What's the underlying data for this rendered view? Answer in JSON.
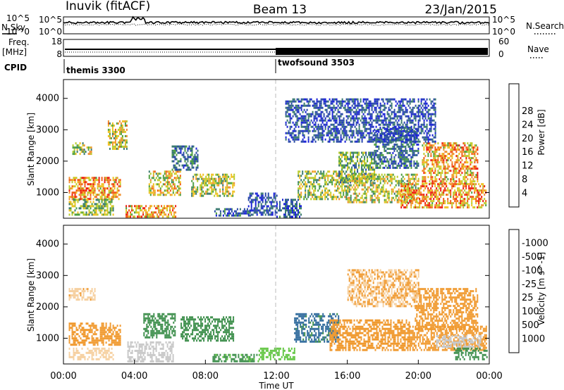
{
  "header": {
    "station": "Inuvik (fitACF)",
    "beam": "Beam 13",
    "date": "23/Jan/2015"
  },
  "strips": {
    "nsky_label": "N.Sky",
    "nsky_ticks": [
      "10^5",
      "10^0"
    ],
    "nsearch_label": "N.Search",
    "nsearch_ticks": [
      "10^5",
      "10^0"
    ],
    "freq_label": "Freq.",
    "freq_unit": "[MHz]",
    "freq_ticks": [
      "18",
      "8"
    ],
    "nave_label": "Nave",
    "nave_ticks": [
      "60",
      "0"
    ],
    "cpid_label": "CPID",
    "cpid_segments": [
      {
        "name": "themis 3300",
        "start_hour": 0,
        "end_hour": 12
      },
      {
        "name": "twofsound 3503",
        "start_hour": 12,
        "end_hour": 24
      }
    ]
  },
  "xaxis": {
    "label": "Time UT",
    "ticks": [
      "00:00",
      "04:00",
      "08:00",
      "12:00",
      "16:00",
      "20:00",
      "00:00"
    ]
  },
  "chart_data": [
    {
      "type": "heatmap",
      "title": "",
      "xlabel": "Time UT",
      "ylabel": "Slant Range [km]",
      "xlim": [
        0,
        24
      ],
      "ylim": [
        180,
        4600
      ],
      "yticks": [
        "1000",
        "2000",
        "3000",
        "4000"
      ],
      "colorbar": {
        "label": "Power [dB]",
        "ticks": [
          "4",
          "8",
          "12",
          "16",
          "20",
          "24",
          "28"
        ],
        "colors": [
          "#1a22d8",
          "#2a4aa8",
          "#3a7a70",
          "#4ea040",
          "#b9cc2c",
          "#f0c020",
          "#f09030",
          "#f05a14",
          "#ee1c10"
        ]
      },
      "regions": [
        {
          "t0": 0.3,
          "t1": 3.2,
          "r0": 800,
          "r1": 1500,
          "value": 26
        },
        {
          "t0": 0.3,
          "t1": 2.8,
          "r0": 300,
          "r1": 800,
          "value": 16
        },
        {
          "t0": 0.5,
          "t1": 1.6,
          "r0": 2200,
          "r1": 2600,
          "value": 17
        },
        {
          "t0": 2.5,
          "t1": 3.6,
          "r0": 2400,
          "r1": 3300,
          "value": 20
        },
        {
          "t0": 3.5,
          "t1": 6.3,
          "r0": 200,
          "r1": 600,
          "value": 26
        },
        {
          "t0": 4.8,
          "t1": 6.6,
          "r0": 900,
          "r1": 1700,
          "value": 21
        },
        {
          "t0": 6.1,
          "t1": 7.6,
          "r0": 1700,
          "r1": 2500,
          "value": 9
        },
        {
          "t0": 7.2,
          "t1": 9.6,
          "r0": 900,
          "r1": 1600,
          "value": 18
        },
        {
          "t0": 8.5,
          "t1": 10.5,
          "r0": 250,
          "r1": 500,
          "value": 7
        },
        {
          "t0": 10.4,
          "t1": 12.0,
          "r0": 300,
          "r1": 1000,
          "value": 6
        },
        {
          "t0": 12.0,
          "t1": 13.4,
          "r0": 250,
          "r1": 800,
          "value": 7
        },
        {
          "t0": 13.2,
          "t1": 16.0,
          "r0": 800,
          "r1": 1700,
          "value": 17
        },
        {
          "t0": 15.5,
          "t1": 17.5,
          "r0": 1300,
          "r1": 2300,
          "value": 14
        },
        {
          "t0": 16.0,
          "t1": 20.0,
          "r0": 700,
          "r1": 1600,
          "value": 19
        },
        {
          "t0": 19.0,
          "t1": 23.8,
          "r0": 500,
          "r1": 1300,
          "value": 26
        },
        {
          "t0": 20.2,
          "t1": 23.3,
          "r0": 1300,
          "r1": 2600,
          "value": 24
        },
        {
          "t0": 17.5,
          "t1": 20.0,
          "r0": 1800,
          "r1": 3100,
          "value": 8
        },
        {
          "t0": 12.5,
          "t1": 21.0,
          "r0": 2600,
          "r1": 4000,
          "value": 6
        }
      ]
    },
    {
      "type": "heatmap",
      "title": "",
      "xlabel": "Time UT",
      "ylabel": "Slant Range [km]",
      "xlim": [
        0,
        24
      ],
      "ylim": [
        180,
        4600
      ],
      "yticks": [
        "1000",
        "2000",
        "3000",
        "4000"
      ],
      "colorbar": {
        "label": "Velocity [m s^-1]",
        "ticks": [
          "1000",
          "500",
          "100",
          "25",
          "-25",
          "-100",
          "-500",
          "-1000"
        ],
        "colors": [
          "#2a3ec4",
          "#2f6a9c",
          "#3e8f4c",
          "#62c642",
          "#c8c8c8",
          "#f6d0a0",
          "#f09a30",
          "#f07020",
          "#ee1c10"
        ]
      },
      "regions": [
        {
          "t0": 0.3,
          "t1": 3.2,
          "r0": 800,
          "r1": 1500,
          "value": -300
        },
        {
          "t0": 0.3,
          "t1": 1.8,
          "r0": 2200,
          "r1": 2600,
          "value": -80
        },
        {
          "t0": 0.3,
          "t1": 2.8,
          "r0": 300,
          "r1": 700,
          "value": -60
        },
        {
          "t0": 3.6,
          "t1": 6.2,
          "r0": 250,
          "r1": 900,
          "value": 0
        },
        {
          "t0": 4.5,
          "t1": 6.3,
          "r0": 1000,
          "r1": 1800,
          "value": 200
        },
        {
          "t0": 6.6,
          "t1": 9.6,
          "r0": 900,
          "r1": 1700,
          "value": 200
        },
        {
          "t0": 8.4,
          "t1": 11.0,
          "r0": 250,
          "r1": 500,
          "value": 120
        },
        {
          "t0": 11.0,
          "t1": 13.0,
          "r0": 300,
          "r1": 700,
          "value": 60
        },
        {
          "t0": 13.0,
          "t1": 15.5,
          "r0": 900,
          "r1": 1800,
          "value": 600
        },
        {
          "t0": 15.0,
          "t1": 19.5,
          "r0": 600,
          "r1": 1600,
          "value": -250
        },
        {
          "t0": 19.5,
          "t1": 23.8,
          "r0": 600,
          "r1": 1400,
          "value": -300
        },
        {
          "t0": 19.8,
          "t1": 23.3,
          "r0": 1300,
          "r1": 2600,
          "value": -150
        },
        {
          "t0": 21.0,
          "t1": 23.5,
          "r0": 700,
          "r1": 1100,
          "value": 0
        },
        {
          "t0": 22.0,
          "t1": 23.9,
          "r0": 300,
          "r1": 700,
          "value": 200
        },
        {
          "t0": 16.0,
          "t1": 20.0,
          "r0": 2000,
          "r1": 3200,
          "value": -100
        }
      ]
    }
  ]
}
